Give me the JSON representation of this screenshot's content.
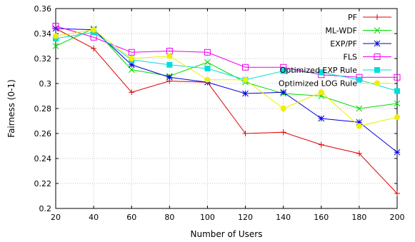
{
  "chart_data": {
    "type": "line",
    "title": "",
    "xlabel": "Number of Users",
    "ylabel": "Fairness (0-1)",
    "x": [
      20,
      40,
      60,
      80,
      100,
      120,
      140,
      160,
      180,
      200
    ],
    "xticks": [
      "20",
      "40",
      "60",
      "80",
      "100",
      "120",
      "140",
      "160",
      "180",
      "200"
    ],
    "yticks": [
      "0.2",
      "0.22",
      "0.24",
      "0.26",
      "0.28",
      "0.3",
      "0.32",
      "0.34",
      "0.36"
    ],
    "xlim": [
      20,
      200
    ],
    "ylim": [
      0.2,
      0.36
    ],
    "grid": true,
    "legend_position": "top-right",
    "series": [
      {
        "name": "PF",
        "color": "#e00000",
        "marker": "plus",
        "values": [
          0.344,
          0.328,
          0.293,
          0.302,
          0.301,
          0.26,
          0.261,
          0.251,
          0.244,
          0.212
        ]
      },
      {
        "name": "ML-WDF",
        "color": "#00dd00",
        "marker": "x",
        "values": [
          0.33,
          0.344,
          0.311,
          0.306,
          0.317,
          0.301,
          0.292,
          0.29,
          0.28,
          0.284
        ]
      },
      {
        "name": "EXP/PF",
        "color": "#0000dd",
        "marker": "star",
        "values": [
          0.344,
          0.343,
          0.315,
          0.305,
          0.301,
          0.292,
          0.293,
          0.272,
          0.269,
          0.245
        ]
      },
      {
        "name": "FLS",
        "color": "#ee00ee",
        "marker": "square-open",
        "values": [
          0.346,
          0.337,
          0.325,
          0.326,
          0.325,
          0.313,
          0.313,
          0.307,
          0.305,
          0.305
        ]
      },
      {
        "name": "Optimized EXP Rule",
        "color": "#00dddd",
        "marker": "square-filled",
        "values": [
          0.336,
          0.341,
          0.319,
          0.315,
          0.312,
          0.303,
          0.31,
          0.309,
          0.303,
          0.294
        ]
      },
      {
        "name": "Optimized LOG Rule",
        "color": "#eeee00",
        "marker": "circle",
        "values": [
          0.338,
          0.343,
          0.32,
          0.322,
          0.303,
          0.303,
          0.28,
          0.293,
          0.266,
          0.273
        ]
      }
    ]
  }
}
